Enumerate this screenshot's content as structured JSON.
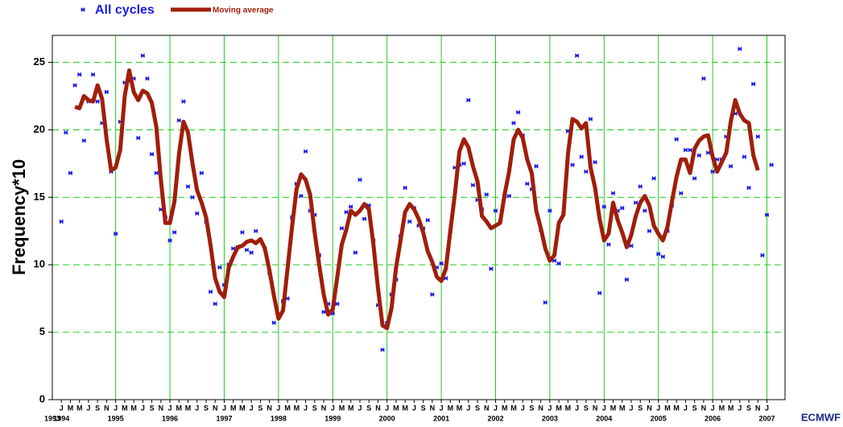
{
  "chart_data": {
    "type": "scatter-line",
    "y_label": "Frequency*10",
    "logo_text": "ECMWF",
    "categories": [
      "J",
      null,
      "M",
      null,
      "M",
      null,
      "J",
      null,
      "S",
      null,
      "N",
      null,
      "J",
      null,
      "M",
      null,
      "M",
      null,
      "J",
      null,
      "S",
      null,
      "N",
      null,
      "J",
      null,
      "M",
      null,
      "M",
      null,
      "J",
      null,
      "S",
      null,
      "N",
      null,
      "J",
      null,
      "M",
      null,
      "M",
      null,
      "J",
      null,
      "S",
      null,
      "N",
      null,
      "J",
      null,
      "M",
      null,
      "M",
      null,
      "J",
      null,
      "S",
      null,
      "N",
      null,
      "J",
      null,
      "M",
      null,
      "M",
      null,
      "J",
      null,
      "S",
      null,
      "N",
      null,
      "J",
      null,
      "M",
      null,
      "M",
      null,
      "J",
      null,
      "S",
      null,
      "N",
      null,
      "J",
      null,
      "M",
      null,
      "M",
      null,
      "J",
      null,
      "S",
      null,
      "N",
      null,
      "J",
      null,
      "M",
      null,
      "M",
      null,
      "J",
      null,
      "S",
      null,
      "N",
      null,
      "J",
      null,
      "M",
      null,
      "M",
      null,
      "J",
      null,
      "S",
      null,
      "N",
      null,
      "J",
      null,
      "M",
      null,
      "M",
      null,
      "J",
      null,
      "S",
      null,
      "N",
      null,
      "J",
      null,
      "M",
      null,
      "M",
      null,
      "J",
      null,
      "S",
      null,
      "N",
      null,
      "J",
      null,
      "M",
      null,
      "M",
      null,
      "J",
      null,
      "S",
      null,
      "N",
      null,
      "J",
      null
    ],
    "xlim": [
      -2,
      160
    ],
    "xticks": [
      {
        "value": -2,
        "label": "1993"
      },
      {
        "value": 0,
        "label": "1994"
      },
      {
        "value": 12,
        "label": "1995"
      },
      {
        "value": 24,
        "label": "1996"
      },
      {
        "value": 36,
        "label": "1997"
      },
      {
        "value": 48,
        "label": "1998"
      },
      {
        "value": 60,
        "label": "1999"
      },
      {
        "value": 72,
        "label": "2000"
      },
      {
        "value": 84,
        "label": "2001"
      },
      {
        "value": 96,
        "label": "2002"
      },
      {
        "value": 108,
        "label": "2003"
      },
      {
        "value": 120,
        "label": "2004"
      },
      {
        "value": 132,
        "label": "2005"
      },
      {
        "value": 144,
        "label": "2006"
      },
      {
        "value": 156,
        "label": "2007"
      }
    ],
    "ylim": [
      0,
      27
    ],
    "yticks": [
      0,
      5,
      10,
      15,
      20,
      25
    ],
    "grid": true,
    "grid_color": "#22cc22",
    "legend": "top-left",
    "series": [
      {
        "name": "All cycles",
        "color": "#1a1aee",
        "marker": "x",
        "values": [
          13.2,
          19.8,
          16.8,
          23.3,
          24.1,
          19.2,
          22.1,
          24.1,
          22.1,
          20.5,
          22.8,
          16.9,
          12.3,
          20.6,
          23.5,
          23.6,
          23.8,
          19.4,
          25.5,
          23.8,
          18.2,
          16.8,
          14.1,
          13.5,
          11.8,
          12.4,
          20.7,
          22.1,
          15.8,
          15.0,
          13.8,
          16.8,
          13.2,
          8.0,
          7.1,
          9.8,
          8.5,
          10.0,
          11.2,
          11.3,
          12.4,
          11.1,
          10.9,
          12.5,
          11.8,
          11.2,
          9.4,
          5.7,
          6.2,
          7.3,
          7.5,
          13.5,
          16.0,
          15.1,
          18.4,
          14.0,
          13.7,
          10.7,
          6.5,
          7.1,
          6.4,
          7.1,
          12.7,
          13.9,
          14.3,
          10.9,
          16.3,
          13.4,
          14.4,
          11.8,
          7.0,
          3.7,
          5.7,
          7.8,
          8.9,
          12.1,
          15.7,
          13.2,
          14.2,
          12.9,
          12.7,
          13.3,
          7.8,
          9.8,
          10.1,
          9.0,
          12.5,
          17.2,
          17.4,
          17.5,
          22.2,
          15.9,
          14.8,
          14.1,
          15.2,
          9.7,
          14.0,
          13.2,
          15.1,
          15.1,
          20.5,
          21.3,
          19.6,
          16.0,
          15.6,
          17.3,
          12.6,
          7.2,
          14.0,
          10.3,
          10.1,
          13.8,
          19.9,
          17.4,
          25.5,
          18.0,
          16.9,
          20.8,
          17.6,
          7.9,
          14.3,
          11.5,
          15.3,
          14.0,
          14.2,
          8.9,
          11.4,
          14.6,
          15.8,
          14.0,
          12.5,
          16.4,
          10.8,
          10.6,
          12.5,
          14.4,
          19.3,
          15.3,
          18.5,
          18.5,
          16.4,
          18.1,
          23.8,
          18.3,
          16.9,
          17.8,
          17.8,
          19.5,
          17.3,
          21.2,
          26.0,
          18.0,
          15.7,
          23.4,
          19.5,
          10.7,
          13.7,
          17.4
        ]
      },
      {
        "name": "Moving average",
        "color": "#a01e0a",
        "values": [
          null,
          null,
          null,
          21.7,
          21.6,
          22.5,
          22.2,
          22.1,
          23.3,
          22.3,
          19.3,
          17.0,
          17.2,
          18.5,
          22.5,
          24.4,
          22.8,
          22.2,
          22.9,
          22.7,
          22.0,
          20.2,
          16.3,
          13.1,
          13.1,
          14.7,
          18.2,
          20.6,
          19.8,
          17.5,
          15.5,
          14.6,
          13.5,
          11.4,
          9.0,
          8.0,
          7.6,
          9.8,
          10.6,
          11.3,
          11.4,
          11.7,
          11.8,
          11.6,
          11.9,
          11.2,
          9.6,
          7.7,
          6.0,
          6.6,
          9.7,
          12.8,
          15.6,
          16.7,
          16.3,
          15.2,
          12.4,
          10.0,
          7.8,
          6.3,
          6.7,
          9.1,
          11.5,
          12.6,
          14.0,
          13.7,
          14.0,
          14.5,
          14.1,
          11.5,
          8.3,
          5.5,
          5.3,
          6.8,
          9.8,
          11.8,
          13.9,
          14.5,
          14.1,
          13.4,
          12.4,
          11.0,
          10.2,
          9.1,
          8.8,
          9.7,
          12.5,
          15.2,
          18.4,
          19.3,
          18.7,
          17.3,
          16.2,
          13.6,
          13.2,
          12.7,
          12.9,
          13.1,
          15.2,
          16.9,
          19.3,
          20.0,
          19.4,
          17.8,
          16.8,
          14.0,
          12.7,
          11.2,
          10.3,
          10.7,
          13.1,
          13.7,
          18.2,
          20.8,
          20.6,
          20.1,
          20.5,
          17.2,
          15.7,
          13.4,
          11.8,
          12.3,
          14.6,
          13.3,
          12.4,
          11.3,
          12.2,
          13.6,
          14.6,
          15.1,
          14.4,
          12.9,
          12.3,
          11.8,
          12.8,
          14.7,
          16.5,
          17.8,
          17.8,
          16.8,
          18.6,
          19.2,
          19.5,
          19.6,
          18.0,
          16.9,
          17.6,
          18.3,
          20.6,
          22.2,
          21.2,
          20.7,
          20.5,
          18.1,
          17.0,
          null,
          null,
          null
        ]
      }
    ]
  }
}
